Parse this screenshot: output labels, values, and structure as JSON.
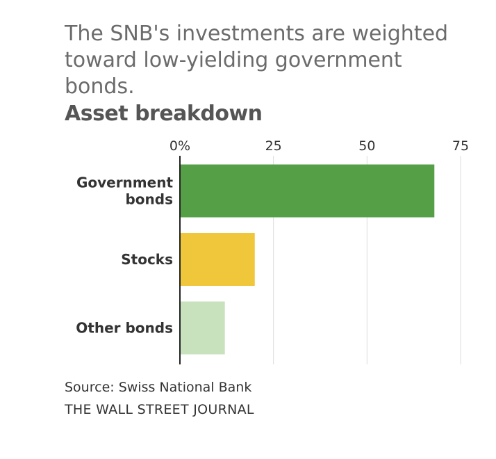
{
  "headline": "The SNB's investments are weighted toward low-yielding government bonds.",
  "source": "Source: Swiss National Bank",
  "publisher": "THE WALL STREET JOURNAL",
  "chart_data": {
    "type": "bar",
    "orientation": "horizontal",
    "title": "Asset breakdown",
    "categories": [
      [
        "Government",
        "bonds"
      ],
      [
        "Stocks"
      ],
      [
        "Other bonds"
      ]
    ],
    "values": [
      68,
      20,
      12
    ],
    "colors": [
      "#55a047",
      "#f0c63b",
      "#c7e2bd"
    ],
    "xlim": [
      0,
      75
    ],
    "ticks": [
      0,
      25,
      50,
      75
    ],
    "tick_labels": [
      "0%",
      "25",
      "50",
      "75"
    ],
    "grid": true
  }
}
